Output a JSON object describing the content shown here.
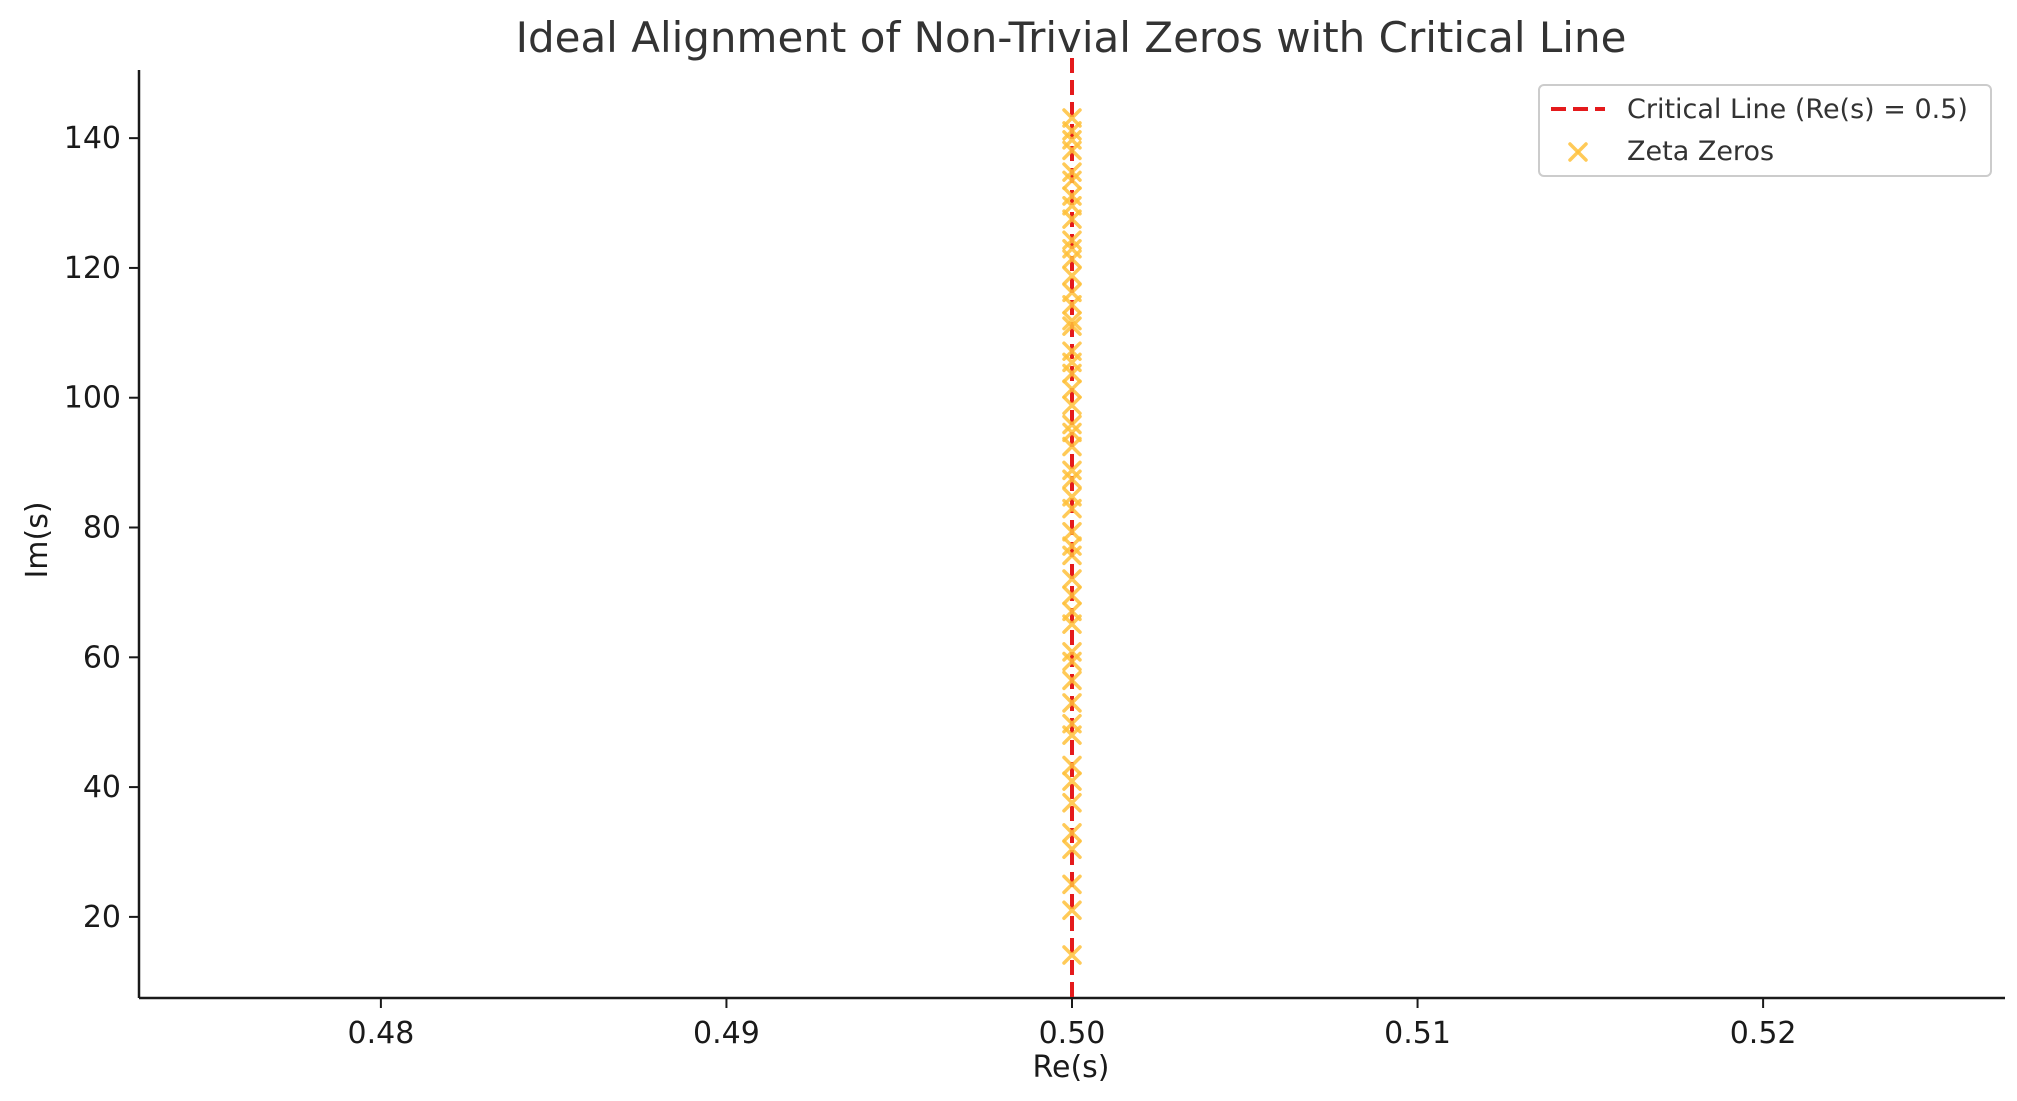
{
  "chart_data": {
    "type": "scatter",
    "title": "Ideal Alignment of Non-Trivial Zeros with Critical Line",
    "xlabel": "Re(s)",
    "ylabel": "Im(s)",
    "xlim": [
      0.473,
      0.527
    ],
    "ylim": [
      7.5,
      150.5
    ],
    "xticks": [
      0.48,
      0.49,
      0.5,
      0.51,
      0.52
    ],
    "xtick_labels": [
      "0.48",
      "0.49",
      "0.50",
      "0.51",
      "0.52"
    ],
    "yticks": [
      20,
      40,
      60,
      80,
      100,
      120,
      140
    ],
    "ytick_labels": [
      "20",
      "40",
      "60",
      "80",
      "100",
      "120",
      "140"
    ],
    "grid": false,
    "legend_position": "top-right",
    "critical_line": {
      "name": "Critical Line (Re(s) = 0.5)",
      "x": 0.5,
      "color": "#e41a1c",
      "style": "dashed"
    },
    "series": [
      {
        "name": "Zeta Zeros",
        "marker": "x",
        "color": "#ffc13b",
        "points": [
          {
            "x": 0.5,
            "y": 14.13
          },
          {
            "x": 0.5,
            "y": 21.02
          },
          {
            "x": 0.5,
            "y": 25.01
          },
          {
            "x": 0.5,
            "y": 30.42
          },
          {
            "x": 0.5,
            "y": 32.94
          },
          {
            "x": 0.5,
            "y": 37.59
          },
          {
            "x": 0.5,
            "y": 40.92
          },
          {
            "x": 0.5,
            "y": 43.33
          },
          {
            "x": 0.5,
            "y": 48.01
          },
          {
            "x": 0.5,
            "y": 49.77
          },
          {
            "x": 0.5,
            "y": 52.97
          },
          {
            "x": 0.5,
            "y": 56.45
          },
          {
            "x": 0.5,
            "y": 59.35
          },
          {
            "x": 0.5,
            "y": 60.83
          },
          {
            "x": 0.5,
            "y": 65.11
          },
          {
            "x": 0.5,
            "y": 67.08
          },
          {
            "x": 0.5,
            "y": 69.55
          },
          {
            "x": 0.5,
            "y": 72.07
          },
          {
            "x": 0.5,
            "y": 75.7
          },
          {
            "x": 0.5,
            "y": 77.14
          },
          {
            "x": 0.5,
            "y": 79.34
          },
          {
            "x": 0.5,
            "y": 82.91
          },
          {
            "x": 0.5,
            "y": 84.74
          },
          {
            "x": 0.5,
            "y": 87.43
          },
          {
            "x": 0.5,
            "y": 88.81
          },
          {
            "x": 0.5,
            "y": 92.49
          },
          {
            "x": 0.5,
            "y": 94.65
          },
          {
            "x": 0.5,
            "y": 95.87
          },
          {
            "x": 0.5,
            "y": 98.83
          },
          {
            "x": 0.5,
            "y": 101.32
          },
          {
            "x": 0.5,
            "y": 103.73
          },
          {
            "x": 0.5,
            "y": 105.45
          },
          {
            "x": 0.5,
            "y": 107.17
          },
          {
            "x": 0.5,
            "y": 111.03
          },
          {
            "x": 0.5,
            "y": 111.87
          },
          {
            "x": 0.5,
            "y": 114.32
          },
          {
            "x": 0.5,
            "y": 116.23
          },
          {
            "x": 0.5,
            "y": 118.79
          },
          {
            "x": 0.5,
            "y": 121.37
          },
          {
            "x": 0.5,
            "y": 122.95
          },
          {
            "x": 0.5,
            "y": 124.26
          },
          {
            "x": 0.5,
            "y": 127.52
          },
          {
            "x": 0.5,
            "y": 129.58
          },
          {
            "x": 0.5,
            "y": 131.09
          },
          {
            "x": 0.5,
            "y": 133.5
          },
          {
            "x": 0.5,
            "y": 134.76
          },
          {
            "x": 0.5,
            "y": 138.12
          },
          {
            "x": 0.5,
            "y": 139.74
          },
          {
            "x": 0.5,
            "y": 141.12
          },
          {
            "x": 0.5,
            "y": 143.11
          }
        ]
      }
    ]
  }
}
